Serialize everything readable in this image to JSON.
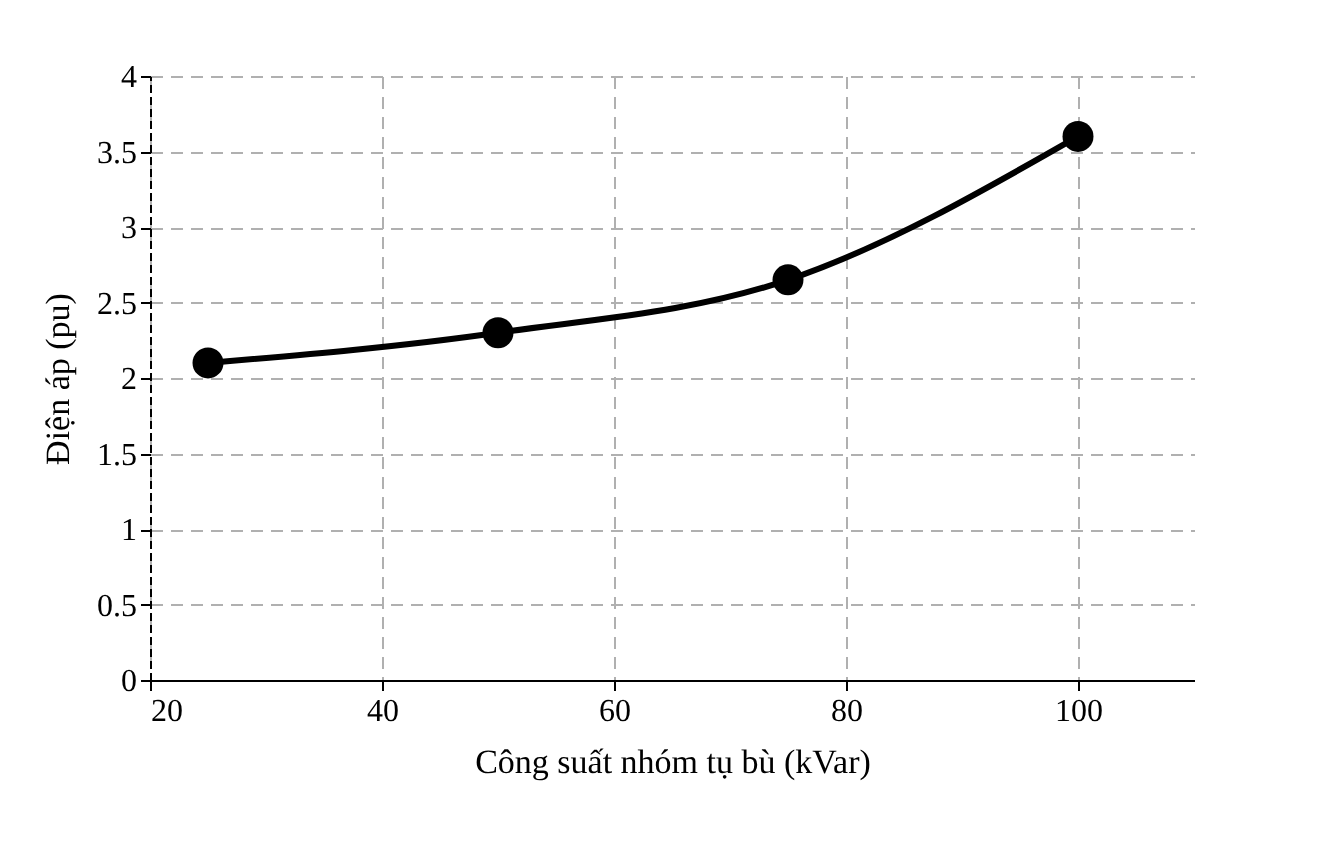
{
  "chart_data": {
    "type": "line",
    "xlabel": "Công suất nhóm tụ bù (kVar)",
    "ylabel": "Điện áp (pu)",
    "x": [
      25,
      50,
      75,
      100
    ],
    "series": [
      {
        "color": "#000000",
        "values": [
          2.1,
          2.3,
          2.65,
          3.6
        ]
      }
    ],
    "xlim": [
      20,
      110
    ],
    "xticks": [
      20,
      40,
      60,
      80,
      100
    ],
    "ylim": [
      0,
      4
    ],
    "yticks": [
      0,
      0.5,
      1,
      1.5,
      2,
      2.5,
      3,
      3.5,
      4
    ],
    "grid": true,
    "marker": "circle",
    "line_style": "solid"
  }
}
